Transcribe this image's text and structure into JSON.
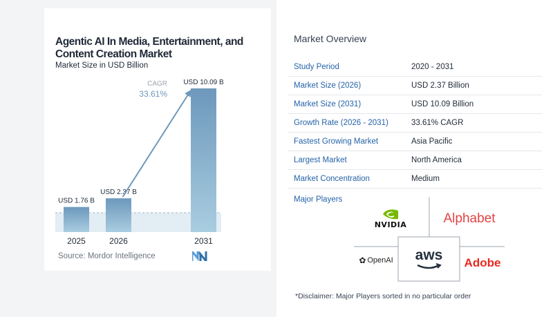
{
  "chart_data": {
    "type": "bar",
    "title": "Agentic AI In Media, Entertainment, and Content Creation Market",
    "subtitle": "Market Size in USD Billion",
    "categories": [
      "2025",
      "2026",
      "2031"
    ],
    "values": [
      1.76,
      2.37,
      10.09
    ],
    "value_labels": [
      "USD 1.76 B",
      "USD 2.37 B",
      "USD 10.09 B"
    ],
    "cagr_label": "CAGR",
    "cagr_value": "33.61%",
    "ylim": [
      0,
      10.09
    ],
    "grid": false,
    "legend": "none",
    "colors": {
      "bar_light": "#a9cde0",
      "bar_dark": "#6d98bc",
      "arrow": "#6d98bc",
      "baseline": "#9fb3c8"
    }
  },
  "source": "Source: Mordor Intelligence",
  "overview": {
    "title": "Market Overview",
    "rows": [
      {
        "key": "Study Period",
        "value": "2020 - 2031"
      },
      {
        "key": "Market Size (2026)",
        "value": "USD 2.37 Billion"
      },
      {
        "key": "Market Size (2031)",
        "value": "USD 10.09 Billion"
      },
      {
        "key": "Growth Rate (2026 - 2031)",
        "value": "33.61% CAGR"
      },
      {
        "key": "Fastest Growing Market",
        "value": "Asia Pacific"
      },
      {
        "key": "Largest Market",
        "value": "North America"
      },
      {
        "key": "Market Concentration",
        "value": "Medium"
      }
    ]
  },
  "players": {
    "label": "Major Players",
    "names": [
      "NVIDIA",
      "Alphabet",
      "OpenAI",
      "aws",
      "Adobe"
    ]
  },
  "disclaimer": "*Disclaimer: Major Players sorted in no particular order",
  "colors": {
    "accent": "#2563a8",
    "alphabet": "#e34242",
    "adobe": "#e8281e",
    "nvidia": "#76b900"
  }
}
